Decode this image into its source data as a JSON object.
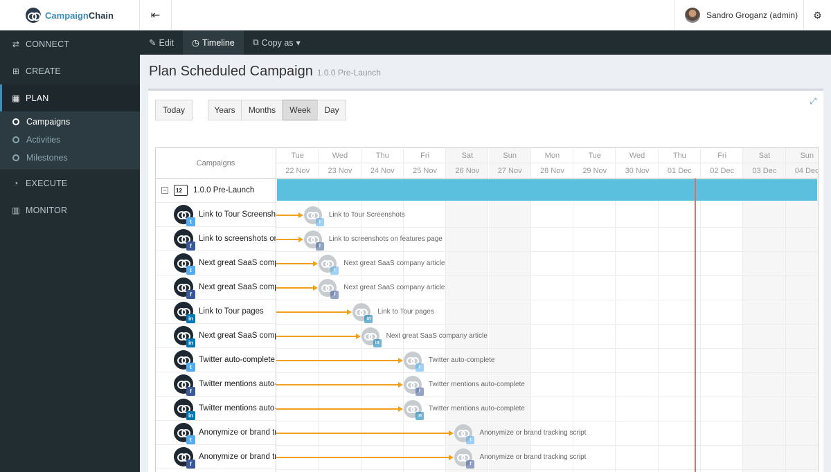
{
  "brand": {
    "name_part1": "Campaign",
    "name_part2": "Chain"
  },
  "header": {
    "menu_toggle_icon": "menu-collapse-icon",
    "user_name": "Sandro Groganz (admin)",
    "settings_icon": "cogs-icon"
  },
  "sidebar": {
    "items": [
      {
        "label": "CONNECT",
        "icon": "exchange-icon",
        "glyph": "⇄"
      },
      {
        "label": "CREATE",
        "icon": "plus-square-icon",
        "glyph": "⊞"
      },
      {
        "label": "PLAN",
        "icon": "calendar-icon",
        "glyph": "▦"
      },
      {
        "label": "EXECUTE",
        "icon": "dashboard-icon",
        "glyph": "◔"
      },
      {
        "label": "MONITOR",
        "icon": "bar-chart-icon",
        "glyph": "▥"
      }
    ],
    "plan_subitems": [
      "Campaigns",
      "Activities",
      "Milestones"
    ]
  },
  "subnav": {
    "edit": {
      "label": "Edit",
      "glyph": "✎"
    },
    "timeline": {
      "label": "Timeline",
      "glyph": "◷"
    },
    "copy": {
      "label": "Copy as",
      "glyph": "⧉",
      "caret": "▾"
    }
  },
  "page": {
    "title": "Plan Scheduled Campaign",
    "subtitle": "1.0.0 Pre-Launch",
    "expand_glyph": "⤢"
  },
  "toolbar": {
    "today": "Today",
    "scales": [
      "Years",
      "Months",
      "Week",
      "Day"
    ],
    "active_scale": "Week"
  },
  "gantt": {
    "grid_header": "Campaigns",
    "days": [
      {
        "dow": "Tue",
        "date": "22 Nov",
        "weekend": false
      },
      {
        "dow": "Wed",
        "date": "23 Nov",
        "weekend": false
      },
      {
        "dow": "Thu",
        "date": "24 Nov",
        "weekend": false
      },
      {
        "dow": "Fri",
        "date": "25 Nov",
        "weekend": false
      },
      {
        "dow": "Sat",
        "date": "26 Nov",
        "weekend": true
      },
      {
        "dow": "Sun",
        "date": "27 Nov",
        "weekend": true
      },
      {
        "dow": "Mon",
        "date": "28 Nov",
        "weekend": false
      },
      {
        "dow": "Tue",
        "date": "29 Nov",
        "weekend": false
      },
      {
        "dow": "Wed",
        "date": "30 Nov",
        "weekend": false
      },
      {
        "dow": "Thu",
        "date": "01 Dec",
        "weekend": false
      },
      {
        "dow": "Fri",
        "date": "02 Dec",
        "weekend": false
      },
      {
        "dow": "Sat",
        "date": "03 Dec",
        "weekend": true
      },
      {
        "dow": "Sun",
        "date": "04 Dec",
        "weekend": true
      }
    ],
    "campaign": {
      "name": "1.0.0 Pre-Launch",
      "collapse_glyph": "−"
    },
    "activities": [
      {
        "name": "Link to Tour Screenshots",
        "channel": "twitter",
        "day_offset": 0.65
      },
      {
        "name": "Link to screenshots on features page",
        "channel": "facebook",
        "day_offset": 0.65
      },
      {
        "name": "Next great SaaS company article",
        "channel": "twitter",
        "day_offset": 1.0
      },
      {
        "name": "Next great SaaS company article",
        "channel": "facebook",
        "day_offset": 1.0
      },
      {
        "name": "Link to Tour pages",
        "channel": "linkedin",
        "day_offset": 1.8
      },
      {
        "name": "Next great SaaS company article",
        "channel": "linkedin",
        "day_offset": 2.0
      },
      {
        "name": "Twitter auto-complete",
        "channel": "twitter",
        "day_offset": 3.0
      },
      {
        "name": "Twitter mentions auto-complete",
        "channel": "facebook",
        "day_offset": 3.0
      },
      {
        "name": "Twitter mentions auto-complete",
        "channel": "linkedin",
        "day_offset": 3.0
      },
      {
        "name": "Anonymize or brand tracking script",
        "channel": "twitter",
        "day_offset": 4.2
      },
      {
        "name": "Anonymize or brand tracking script",
        "channel": "facebook",
        "day_offset": 4.2
      }
    ],
    "channel_glyphs": {
      "twitter": "t",
      "facebook": "f",
      "linkedin": "in"
    },
    "today_day_offset": 9.85
  }
}
